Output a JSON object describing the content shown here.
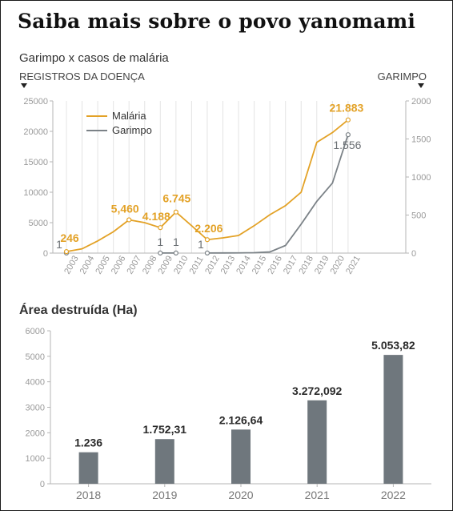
{
  "headline": "Saiba mais sobre o povo yanomami",
  "colors": {
    "malaria": "#e3a227",
    "garimpo": "#7b8287",
    "bars": "#6f777d",
    "axis_text": "#9a9a9a",
    "grid": "#e4e4e4"
  },
  "chart_data": [
    {
      "type": "line",
      "title": "Garimpo x casos de malária",
      "ylabel_left": "REGISTROS DA DOENÇA",
      "ylabel_right": "GARIMPO",
      "ylim_left": [
        0,
        25000
      ],
      "ylim_right": [
        0,
        2000
      ],
      "yticks_left": [
        0,
        5000,
        10000,
        15000,
        20000,
        25000
      ],
      "yticks_right": [
        0,
        500,
        1000,
        1500,
        2000
      ],
      "x": [
        "2003",
        "2004",
        "2005",
        "2006",
        "2007",
        "2008",
        "2009",
        "2010",
        "2011",
        "2012",
        "2013",
        "2014",
        "2015",
        "2016",
        "2017",
        "2018",
        "2019",
        "2020",
        "2021"
      ],
      "legend": {
        "placement": "top-left",
        "entries": [
          "Malária",
          "Garimpo"
        ]
      },
      "grid": "vertical",
      "series": [
        {
          "name": "Malária",
          "axis": "left",
          "values": [
            246,
            700,
            2000,
            3500,
            5460,
            5000,
            4188,
            6745,
            4500,
            2206,
            2500,
            2900,
            4500,
            6300,
            7800,
            10000,
            18200,
            19800,
            21883
          ],
          "labels": [
            {
              "index": 0,
              "text": "246"
            },
            {
              "index": 4,
              "text": "5,460"
            },
            {
              "index": 6,
              "text": "4.188"
            },
            {
              "index": 7,
              "text": "6.745"
            },
            {
              "index": 9,
              "text": "2.206"
            },
            {
              "index": 18,
              "text": "21.883"
            }
          ]
        },
        {
          "name": "Garimpo",
          "axis": "right",
          "values": [
            1,
            null,
            null,
            null,
            null,
            null,
            1,
            1,
            null,
            1,
            2,
            3,
            5,
            15,
            100,
            380,
            680,
            920,
            1556
          ],
          "labels": [
            {
              "index": 0,
              "text": "1"
            },
            {
              "index": 6,
              "text": "1"
            },
            {
              "index": 7,
              "text": "1"
            },
            {
              "index": 9,
              "text": "1"
            },
            {
              "index": 18,
              "text": "1.556"
            }
          ]
        }
      ]
    },
    {
      "type": "bar",
      "title": "Área destruída (Ha)",
      "categories": [
        "2018",
        "2019",
        "2020",
        "2021",
        "2022"
      ],
      "values": [
        1236,
        1752.31,
        2126.64,
        3272.092,
        5053.82
      ],
      "value_labels": [
        "1.236",
        "1.752,31",
        "2.126,64",
        "3.272,092",
        "5.053,82"
      ],
      "ylim": [
        0,
        6000
      ],
      "yticks": [
        0,
        1000,
        2000,
        3000,
        4000,
        5000,
        6000
      ]
    }
  ]
}
